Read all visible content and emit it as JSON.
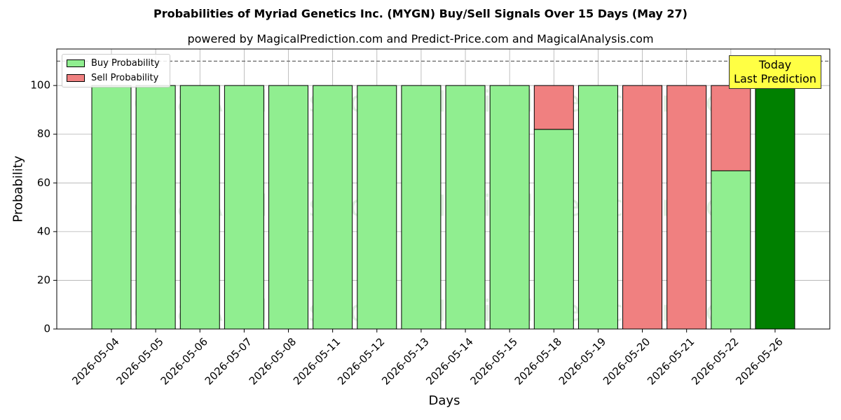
{
  "chart_data": {
    "type": "bar",
    "title": "Probabilities of Myriad Genetics Inc. (MYGN) Buy/Sell Signals Over 15 Days (May 27)",
    "subtitle": "powered by MagicalPrediction.com and Predict-Price.com and MagicalAnalysis.com",
    "xlabel": "Days",
    "ylabel": "Probability",
    "ylim": [
      0,
      115
    ],
    "yticks": [
      0,
      20,
      40,
      60,
      80,
      100
    ],
    "grid": true,
    "stacked": true,
    "legend_position": "top-left",
    "reference_line": 110,
    "categories": [
      "2026-05-04",
      "2026-05-05",
      "2026-05-06",
      "2026-05-07",
      "2026-05-08",
      "2026-05-11",
      "2026-05-12",
      "2026-05-13",
      "2026-05-14",
      "2026-05-15",
      "2026-05-18",
      "2026-05-19",
      "2026-05-20",
      "2026-05-21",
      "2026-05-22",
      "2026-05-26"
    ],
    "series": [
      {
        "name": "Buy Probability",
        "color": "#90ee90",
        "values": [
          100,
          100,
          100,
          100,
          100,
          100,
          100,
          100,
          100,
          100,
          82,
          100,
          0,
          0,
          65,
          100
        ]
      },
      {
        "name": "Sell Probability",
        "color": "#f08080",
        "values": [
          0,
          0,
          0,
          0,
          0,
          0,
          0,
          0,
          0,
          0,
          18,
          0,
          100,
          100,
          35,
          0
        ]
      }
    ],
    "highlight": {
      "category": "2026-05-26",
      "color": "#008000",
      "label_line1": "Today",
      "label_line2": "Last Prediction"
    },
    "watermarks": [
      "MagicalAnalysis.com",
      "MagicalPrediction.com"
    ]
  }
}
